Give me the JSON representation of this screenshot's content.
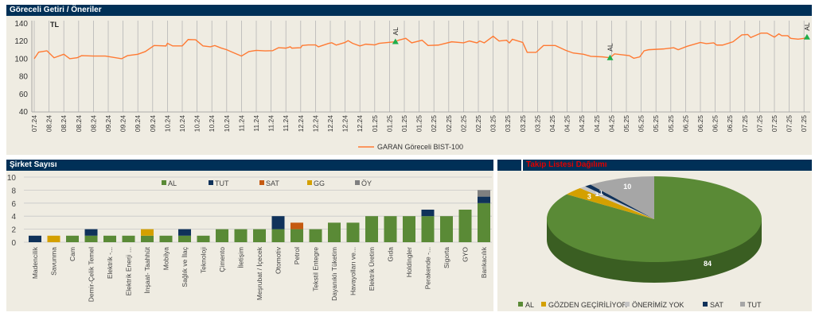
{
  "panels": {
    "top_title": "Göreceli Getiri / Öneriler",
    "left_title": "Şirket Sayısı",
    "right_title": "Takip Listesi Dağılımı"
  },
  "colors": {
    "header": "#003057",
    "panel_bg": "#efece2",
    "line": "#ff7a33",
    "marker": "#1fae4b",
    "AL": "#5a8a36",
    "TUT": "#10325a",
    "SAT": "#c55a11",
    "GG": "#d4a000",
    "OY": "#808080",
    "ONERIMIZ_YOK": "#c4c4c4",
    "TUT_pie": "#a6a6a6",
    "title_red": "#e00000"
  },
  "chart_data": [
    {
      "type": "line",
      "currency_label": "TL",
      "ylim": [
        40,
        140
      ],
      "yticks": [
        40,
        60,
        80,
        100,
        120,
        140
      ],
      "x_tick_labels": [
        "07.24",
        "08.24",
        "08.24",
        "08.24",
        "08.24",
        "09.24",
        "09.24",
        "09.24",
        "09.24",
        "10.24",
        "10.24",
        "10.24",
        "10.24",
        "10.24",
        "11.24",
        "11.24",
        "11.24",
        "11.24",
        "12.24",
        "12.24",
        "12.24",
        "12.24",
        "12.24",
        "01.25",
        "01.25",
        "01.25",
        "01.25",
        "02.25",
        "02.25",
        "02.25",
        "02.25",
        "03.25",
        "03.25",
        "03.25",
        "03.25",
        "04.25",
        "04.25",
        "04.25",
        "04.25",
        "04.25",
        "05.25",
        "05.25",
        "05.25",
        "05.25",
        "06.25",
        "06.25",
        "06.25",
        "06.25",
        "07.25",
        "07.25",
        "07.25",
        "07.25",
        "07.25"
      ],
      "grid": "vertical",
      "legend": "bottom",
      "series": [
        {
          "name": "GARAN Göreceli BIST-100",
          "points": [
            [
              0,
              99.5
            ],
            [
              0.3,
              107
            ],
            [
              0.86,
              108.5
            ],
            [
              1.34,
              100.6
            ],
            [
              2,
              104.6
            ],
            [
              2.4,
              99.5
            ],
            [
              2.9,
              100.6
            ],
            [
              3.2,
              103
            ],
            [
              4,
              102.6
            ],
            [
              4.8,
              102.6
            ],
            [
              5.9,
              99.5
            ],
            [
              6.3,
              103
            ],
            [
              7,
              104.6
            ],
            [
              7.5,
              107.6
            ],
            [
              8.1,
              114.5
            ],
            [
              8.9,
              114
            ],
            [
              9,
              117
            ],
            [
              9.35,
              114
            ],
            [
              10,
              114
            ],
            [
              10.4,
              121.3
            ],
            [
              10.9,
              121
            ],
            [
              11.4,
              114
            ],
            [
              11.9,
              113
            ],
            [
              12.2,
              114.5
            ],
            [
              12.6,
              111.8
            ],
            [
              13,
              109.7
            ],
            [
              13.4,
              106.8
            ],
            [
              14,
              102.5
            ],
            [
              14.5,
              107.6
            ],
            [
              15,
              109
            ],
            [
              15.6,
              108.4
            ],
            [
              16.1,
              108.6
            ],
            [
              16.5,
              112
            ],
            [
              17,
              111.5
            ],
            [
              17.3,
              113
            ],
            [
              17.4,
              111.5
            ],
            [
              18,
              112
            ],
            [
              18.1,
              114.5
            ],
            [
              18.5,
              115.2
            ],
            [
              19,
              115.2
            ],
            [
              19.2,
              113
            ],
            [
              19.9,
              117
            ],
            [
              20.1,
              117.6
            ],
            [
              20.4,
              115
            ],
            [
              21,
              118
            ],
            [
              21.2,
              120
            ],
            [
              21.5,
              117
            ],
            [
              22,
              114
            ],
            [
              22.4,
              116
            ],
            [
              23,
              115.2
            ],
            [
              23.3,
              117
            ],
            [
              24.4,
              118.8
            ],
            [
              24.6,
              120.5
            ],
            [
              25.1,
              122.6
            ],
            [
              25.5,
              117.5
            ],
            [
              26.2,
              120.5
            ],
            [
              26.6,
              114.5
            ],
            [
              27.3,
              115
            ],
            [
              28.2,
              118.7
            ],
            [
              29,
              117.5
            ],
            [
              29.4,
              119.6
            ],
            [
              29.9,
              117.5
            ],
            [
              30.1,
              119.6
            ],
            [
              30.4,
              117.5
            ],
            [
              31,
              125
            ],
            [
              31.4,
              119.6
            ],
            [
              31.9,
              120.5
            ],
            [
              32.1,
              117.5
            ],
            [
              32.3,
              121.6
            ],
            [
              33,
              118
            ],
            [
              33.3,
              106.7
            ],
            [
              33.9,
              106.7
            ],
            [
              34.4,
              114.5
            ],
            [
              35.2,
              114.5
            ],
            [
              35.9,
              109
            ],
            [
              36.4,
              106
            ],
            [
              37.1,
              104.6
            ],
            [
              37.6,
              102.2
            ],
            [
              38.4,
              101.6
            ],
            [
              38.9,
              100.6
            ],
            [
              39.2,
              105
            ],
            [
              40.2,
              103
            ],
            [
              40.5,
              100
            ],
            [
              40.9,
              101.6
            ],
            [
              41.2,
              108.5
            ],
            [
              41.5,
              109.7
            ],
            [
              42.5,
              110.6
            ],
            [
              43.2,
              112
            ],
            [
              43.5,
              109.7
            ],
            [
              44.1,
              113.6
            ],
            [
              45,
              118
            ],
            [
              45.4,
              116.6
            ],
            [
              45.9,
              117.5
            ],
            [
              46.1,
              115
            ],
            [
              46.5,
              115
            ],
            [
              47.2,
              118.7
            ],
            [
              47.8,
              126.5
            ],
            [
              48.2,
              127
            ],
            [
              48.4,
              123.5
            ],
            [
              49.1,
              128.6
            ],
            [
              49.5,
              128.6
            ],
            [
              50,
              124
            ],
            [
              50.3,
              127.7
            ],
            [
              50.5,
              125.6
            ],
            [
              50.9,
              125.6
            ],
            [
              51.1,
              122.6
            ],
            [
              51.6,
              121.7
            ],
            [
              52,
              122.6
            ],
            [
              52.2,
              124
            ]
          ]
        }
      ],
      "markers": [
        {
          "label": "AL",
          "x": 24.4,
          "y": 118.8
        },
        {
          "label": "AL",
          "x": 38.9,
          "y": 100.6
        },
        {
          "label": "AL",
          "x": 52.2,
          "y": 124
        }
      ]
    },
    {
      "type": "bar",
      "stacked": true,
      "ylim": [
        0,
        10
      ],
      "yticks": [
        0,
        2,
        4,
        6,
        8,
        10
      ],
      "grid": "horizontal",
      "legend": "top",
      "categories": [
        "Madencilik",
        "Savunma",
        "Cam",
        "Demir-Çelik Temel",
        "Elektrik -...",
        "Elektrik Enerji ...",
        "İnşaat- Taahhüt",
        "Mobilya",
        "Sağlık ve İlaç",
        "Teknoloji",
        "Çimento",
        "İletişim",
        "Meşrubat / İçecek",
        "Otomotiv",
        "Petrol",
        "Tekstil Entegre",
        "Dayanıklı Tüketim",
        "Havayolları ve...",
        "Elektrik Üretim",
        "Gıda",
        "Holdingler",
        "Perakende -...",
        "Sigorta",
        "GYO",
        "Bankacılık"
      ],
      "series": [
        {
          "name": "AL",
          "color": "#5a8a36",
          "values": [
            0,
            0,
            1,
            1,
            1,
            1,
            1,
            1,
            1,
            1,
            2,
            2,
            2,
            2,
            2,
            2,
            3,
            3,
            4,
            4,
            4,
            4,
            4,
            5,
            6
          ]
        },
        {
          "name": "TUT",
          "color": "#10325a",
          "values": [
            1,
            0,
            0,
            1,
            0,
            0,
            0,
            0,
            1,
            0,
            0,
            0,
            0,
            2,
            0,
            0,
            0,
            0,
            0,
            0,
            0,
            1,
            0,
            0,
            1
          ]
        },
        {
          "name": "SAT",
          "color": "#c55a11",
          "values": [
            0,
            0,
            0,
            0,
            0,
            0,
            0,
            0,
            0,
            0,
            0,
            0,
            0,
            0,
            1,
            0,
            0,
            0,
            0,
            0,
            0,
            0,
            0,
            0,
            0
          ]
        },
        {
          "name": "GG",
          "color": "#d4a000",
          "values": [
            0,
            1,
            0,
            0,
            0,
            0,
            1,
            0,
            0,
            0,
            0,
            0,
            0,
            0,
            0,
            0,
            0,
            0,
            0,
            0,
            0,
            0,
            0,
            0,
            0
          ]
        },
        {
          "name": "ÖY",
          "color": "#808080",
          "values": [
            0,
            0,
            0,
            0,
            0,
            0,
            0,
            0,
            0,
            0,
            0,
            0,
            0,
            0,
            0,
            0,
            0,
            0,
            0,
            0,
            0,
            0,
            0,
            0,
            1
          ]
        }
      ]
    },
    {
      "type": "pie",
      "style": "3d",
      "legend": "bottom",
      "slices": [
        {
          "name": "AL",
          "value": 84,
          "color": "#5a8a36",
          "side": "#3a5e22"
        },
        {
          "name": "GÖZDEN GEÇİRİLİYOR",
          "value": 3,
          "color": "#d4a000",
          "side": "#8f6c00"
        },
        {
          "name": "ÖNERİMİZ YOK",
          "value": 1,
          "color": "#c4c4c4",
          "side": "#8a8a8a"
        },
        {
          "name": "SAT",
          "value": 1,
          "color": "#10325a",
          "side": "#0a1f38"
        },
        {
          "name": "TUT",
          "value": 10,
          "color": "#a6a6a6",
          "side": "#707070"
        }
      ]
    }
  ]
}
